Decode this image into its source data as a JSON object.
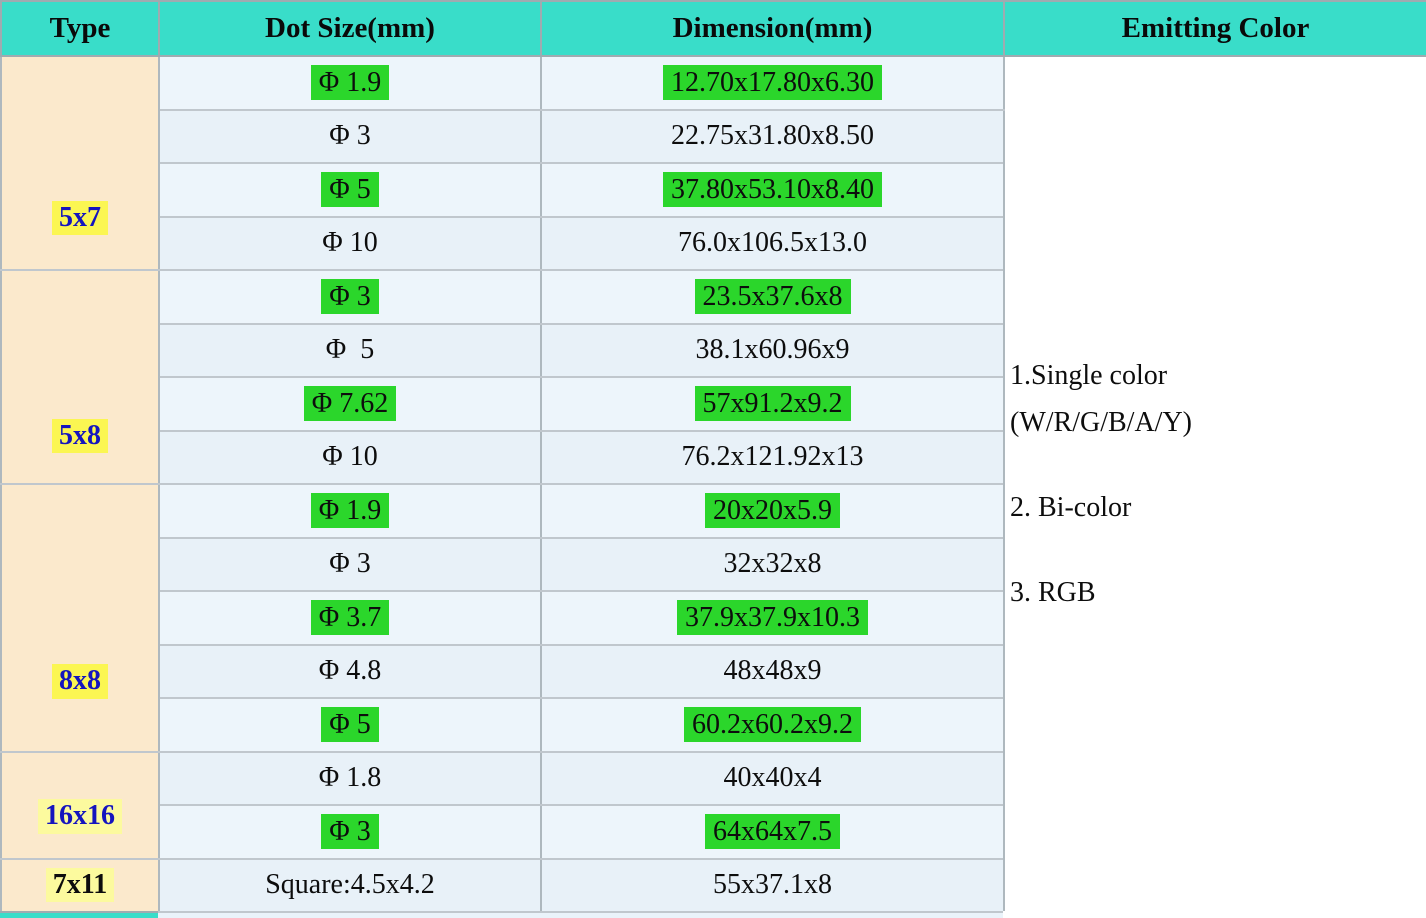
{
  "colors": {
    "header_bg": "#39ddc9",
    "type_col_bg": "#fbe9cc",
    "row_bg": "#eaf3fa",
    "highlight_green": "#2bd62b",
    "highlight_yellow_bright": "#fbf652",
    "highlight_yellow_pale": "#fcfa9e",
    "type_text_blue": "#1515be",
    "text_black": "#0d0d0d"
  },
  "table": {
    "headers": [
      "Type",
      "Dot Size(mm)",
      "Dimension(mm)",
      "Emitting Color"
    ],
    "groups": [
      {
        "type": "5x7",
        "label_color": "type_text_blue",
        "label_bg": "highlight_yellow_bright",
        "rows": [
          {
            "dot": "Φ 1.9",
            "dot_highlight": true,
            "dimension": "12.70x17.80x6.30",
            "dimension_highlight": true
          },
          {
            "dot": "Φ 3",
            "dot_highlight": false,
            "dimension": "22.75x31.80x8.50",
            "dimension_highlight": false
          },
          {
            "dot": "Φ 5",
            "dot_highlight": true,
            "dimension": "37.80x53.10x8.40",
            "dimension_highlight": true
          },
          {
            "dot": "Φ 10",
            "dot_highlight": false,
            "dimension": "76.0x106.5x13.0",
            "dimension_highlight": false
          }
        ]
      },
      {
        "type": "5x8",
        "label_color": "type_text_blue",
        "label_bg": "highlight_yellow_bright",
        "rows": [
          {
            "dot": "Φ 3",
            "dot_highlight": true,
            "dimension": "23.5x37.6x8",
            "dimension_highlight": true
          },
          {
            "dot": "Φ  5",
            "dot_highlight": false,
            "dimension": "38.1x60.96x9",
            "dimension_highlight": false
          },
          {
            "dot": "Φ 7.62",
            "dot_highlight": true,
            "dimension": "57x91.2x9.2",
            "dimension_highlight": true
          },
          {
            "dot": "Φ 10",
            "dot_highlight": false,
            "dimension": "76.2x121.92x13",
            "dimension_highlight": false
          }
        ]
      },
      {
        "type": "8x8",
        "label_color": "type_text_blue",
        "label_bg": "highlight_yellow_bright",
        "rows": [
          {
            "dot": "Φ 1.9",
            "dot_highlight": true,
            "dimension": "20x20x5.9",
            "dimension_highlight": true
          },
          {
            "dot": "Φ 3",
            "dot_highlight": false,
            "dimension": "32x32x8",
            "dimension_highlight": false
          },
          {
            "dot": "Φ 3.7",
            "dot_highlight": true,
            "dimension": "37.9x37.9x10.3",
            "dimension_highlight": true
          },
          {
            "dot": "Φ 4.8",
            "dot_highlight": false,
            "dimension": "48x48x9",
            "dimension_highlight": false
          },
          {
            "dot": "Φ 5",
            "dot_highlight": true,
            "dimension": "60.2x60.2x9.2",
            "dimension_highlight": true
          }
        ]
      },
      {
        "type": "16x16",
        "label_color": "type_text_blue",
        "label_bg": "highlight_yellow_pale",
        "rows": [
          {
            "dot": "Φ 1.8",
            "dot_highlight": false,
            "dimension": "40x40x4",
            "dimension_highlight": false
          },
          {
            "dot": "Φ 3",
            "dot_highlight": true,
            "dimension": "64x64x7.5",
            "dimension_highlight": true
          }
        ]
      },
      {
        "type": "7x11",
        "label_color": "text_black",
        "label_bg": "highlight_yellow_pale",
        "rows": [
          {
            "dot": "Square:4.5x4.2",
            "dot_highlight": false,
            "dimension": "55x37.1x8",
            "dimension_highlight": false
          }
        ]
      }
    ],
    "emitting_color": {
      "paragraphs": [
        [
          "1.Single color",
          "(W/R/G/B/A/Y)"
        ],
        [
          "2. Bi-color"
        ],
        [
          "3. RGB"
        ]
      ]
    }
  }
}
